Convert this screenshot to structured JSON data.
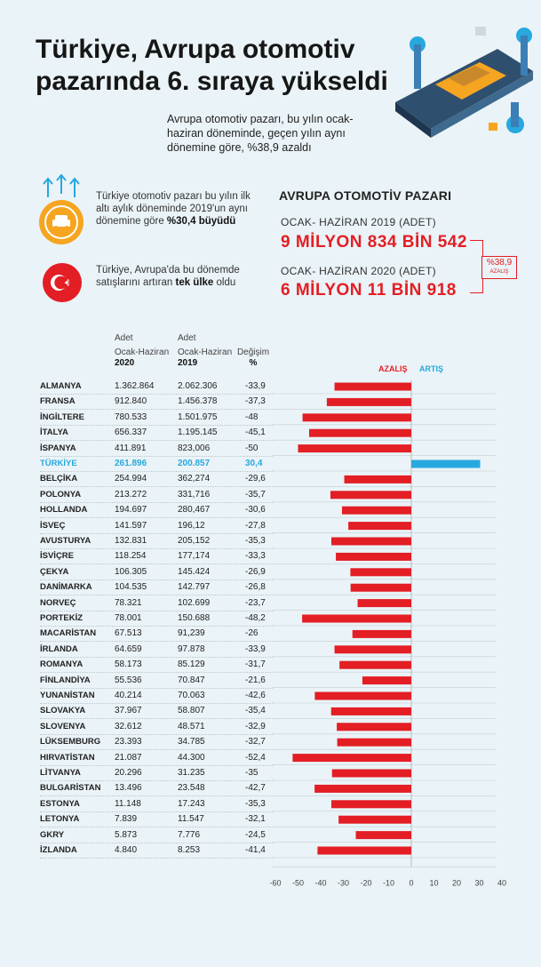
{
  "header": {
    "title": "Türkiye, Avrupa otomotiv pazarında 6. sıraya yükseldi",
    "subtitle": "Avrupa otomotiv pazarı, bu yılın ocak-haziran döneminde, geçen yılın aynı dönemine göre, %38,9 azaldı"
  },
  "info": {
    "growth_text": "Türkiye otomotiv pazarı bu yılın ilk altı aylık döneminde 2019'un aynı dönemine göre ",
    "growth_bold": "%30,4 büyüdü",
    "only_text": "Türkiye, Avrupa'da bu dönemde satışlarını artıran ",
    "only_bold": "tek ülke",
    "only_text_end": " oldu"
  },
  "market": {
    "title": "AVRUPA OTOMOTİV PAZARI",
    "label_2019": "OCAK- HAZİRAN 2019 (ADET)",
    "value_2019": "9 MİLYON 834 BİN 542",
    "label_2020": "OCAK- HAZİRAN 2020 (ADET)",
    "value_2020": "6 MİLYON 11 BİN 918",
    "decrease_value": "%38,9",
    "decrease_label": "AZALIŞ"
  },
  "table_headers": {
    "unit": "Adet",
    "period": "Ocak-Haziran",
    "y2020": "2020",
    "y2019": "2019",
    "change": "Değişim",
    "change_unit": "%"
  },
  "colors": {
    "decrease": "#e31e24",
    "increase": "#27a8de",
    "accent": "#f6a521"
  },
  "chart_data": {
    "type": "bar",
    "orientation": "horizontal",
    "legend": {
      "decrease": "AZALIŞ",
      "increase": "ARTIŞ"
    },
    "xlim": [
      -60,
      40
    ],
    "xticks": [
      -60,
      -50,
      -40,
      -30,
      -20,
      -10,
      0,
      10,
      20,
      30,
      40
    ],
    "rows": [
      {
        "country": "ALMANYA",
        "v2020": "1.362.864",
        "v2019": "2.062.306",
        "change_label": "-33,9",
        "change": -33.9
      },
      {
        "country": "FRANSA",
        "v2020": "912.840",
        "v2019": "1.456.378",
        "change_label": "-37,3",
        "change": -37.3
      },
      {
        "country": "İNGİLTERE",
        "v2020": "780.533",
        "v2019": "1.501.975",
        "change_label": "-48",
        "change": -48
      },
      {
        "country": "İTALYA",
        "v2020": "656.337",
        "v2019": "1.195.145",
        "change_label": "-45,1",
        "change": -45.1
      },
      {
        "country": "İSPANYA",
        "v2020": "411.891",
        "v2019": "823,006",
        "change_label": "-50",
        "change": -50
      },
      {
        "country": "TÜRKİYE",
        "v2020": "261.896",
        "v2019": "200.857",
        "change_label": "30,4",
        "change": 30.4,
        "highlight": true
      },
      {
        "country": "BELÇİKA",
        "v2020": "254.994",
        "v2019": "362,274",
        "change_label": "-29,6",
        "change": -29.6
      },
      {
        "country": "POLONYA",
        "v2020": "213.272",
        "v2019": "331,716",
        "change_label": "-35,7",
        "change": -35.7
      },
      {
        "country": "HOLLANDA",
        "v2020": "194.697",
        "v2019": "280,467",
        "change_label": "-30,6",
        "change": -30.6
      },
      {
        "country": "İSVEÇ",
        "v2020": "141.597",
        "v2019": "196,12",
        "change_label": "-27,8",
        "change": -27.8
      },
      {
        "country": "AVUSTURYA",
        "v2020": "132.831",
        "v2019": "205,152",
        "change_label": "-35,3",
        "change": -35.3
      },
      {
        "country": "İSVİÇRE",
        "v2020": "118.254",
        "v2019": "177,174",
        "change_label": "-33,3",
        "change": -33.3
      },
      {
        "country": "ÇEKYA",
        "v2020": "106.305",
        "v2019": "145.424",
        "change_label": "-26,9",
        "change": -26.9
      },
      {
        "country": "DANİMARKA",
        "v2020": "104.535",
        "v2019": "142.797",
        "change_label": "-26,8",
        "change": -26.8
      },
      {
        "country": "NORVEÇ",
        "v2020": "78.321",
        "v2019": "102.699",
        "change_label": "-23,7",
        "change": -23.7
      },
      {
        "country": "PORTEKİZ",
        "v2020": "78.001",
        "v2019": "150.688",
        "change_label": "-48,2",
        "change": -48.2
      },
      {
        "country": "MACARİSTAN",
        "v2020": "67.513",
        "v2019": "91,239",
        "change_label": "-26",
        "change": -26
      },
      {
        "country": "İRLANDA",
        "v2020": "64.659",
        "v2019": "97.878",
        "change_label": "-33,9",
        "change": -33.9
      },
      {
        "country": "ROMANYA",
        "v2020": "58.173",
        "v2019": "85.129",
        "change_label": "-31,7",
        "change": -31.7
      },
      {
        "country": "FİNLANDİYA",
        "v2020": "55.536",
        "v2019": "70.847",
        "change_label": "-21,6",
        "change": -21.6
      },
      {
        "country": "YUNANİSTAN",
        "v2020": "40.214",
        "v2019": "70.063",
        "change_label": "-42,6",
        "change": -42.6
      },
      {
        "country": "SLOVAKYA",
        "v2020": "37.967",
        "v2019": "58.807",
        "change_label": "-35,4",
        "change": -35.4
      },
      {
        "country": "SLOVENYA",
        "v2020": "32.612",
        "v2019": "48.571",
        "change_label": "-32,9",
        "change": -32.9
      },
      {
        "country": "LÜKSEMBURG",
        "v2020": "23.393",
        "v2019": "34.785",
        "change_label": "-32,7",
        "change": -32.7
      },
      {
        "country": "HIRVATİSTAN",
        "v2020": "21.087",
        "v2019": "44.300",
        "change_label": "-52,4",
        "change": -52.4
      },
      {
        "country": "LİTVANYA",
        "v2020": "20.296",
        "v2019": "31.235",
        "change_label": "-35",
        "change": -35
      },
      {
        "country": "BULGARİSTAN",
        "v2020": "13.496",
        "v2019": "23.548",
        "change_label": "-42,7",
        "change": -42.7
      },
      {
        "country": "ESTONYA",
        "v2020": "11.148",
        "v2019": "17.243",
        "change_label": "-35,3",
        "change": -35.3
      },
      {
        "country": "LETONYA",
        "v2020": "7.839",
        "v2019": "11.547",
        "change_label": "-32,1",
        "change": -32.1
      },
      {
        "country": "GKRY",
        "v2020": "5.873",
        "v2019": "7.776",
        "change_label": "-24,5",
        "change": -24.5
      },
      {
        "country": "İZLANDA",
        "v2020": "4.840",
        "v2019": "8.253",
        "change_label": "-41,4",
        "change": -41.4
      }
    ]
  }
}
